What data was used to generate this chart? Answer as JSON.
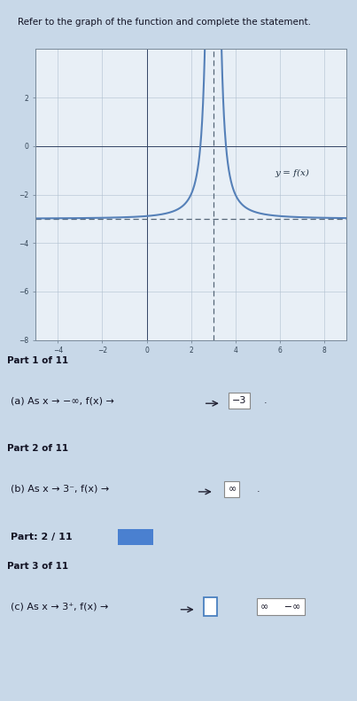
{
  "title": "Refer to the graph of the function and complete the statement.",
  "func_label": "y = f(x)",
  "vertical_asymptote": 3,
  "horizontal_asymptote": -3,
  "xlim": [
    -5,
    9
  ],
  "ylim": [
    -8,
    4
  ],
  "xticks": [
    -4,
    -2,
    0,
    2,
    4,
    6,
    8
  ],
  "yticks": [
    -8,
    -6,
    -4,
    -2,
    0,
    2
  ],
  "graph_bg": "#e8eff6",
  "curve_color": "#5580b8",
  "asymptote_color": "#556677",
  "grid_color": "#b0c0d0",
  "page_bg": "#c8d8e8",
  "panel_header_bg": "#a8c0d8",
  "panel_body_bg": "#dce8f4",
  "white": "#ffffff",
  "blue_border": "#4a80c0",
  "parts": [
    {
      "label": "Part 1 of 11",
      "text": "(a) As x → −∞, f(x) →",
      "answer": "−3",
      "answered": true
    },
    {
      "label": "Part 2 of 11",
      "text": "(b) As x → 3⁻, f(x) →",
      "answer": "∞",
      "answered": true
    },
    {
      "progress_text": "Part: 2 / 11",
      "progress_bar_color": "#4a80d0",
      "progress_bar_width": 0.1
    },
    {
      "label": "Part 3 of 11",
      "text": "(c) As x → 3⁺, f(x) →",
      "answer": "",
      "answered": false,
      "options": [
        "∞",
        "−∞"
      ]
    }
  ]
}
